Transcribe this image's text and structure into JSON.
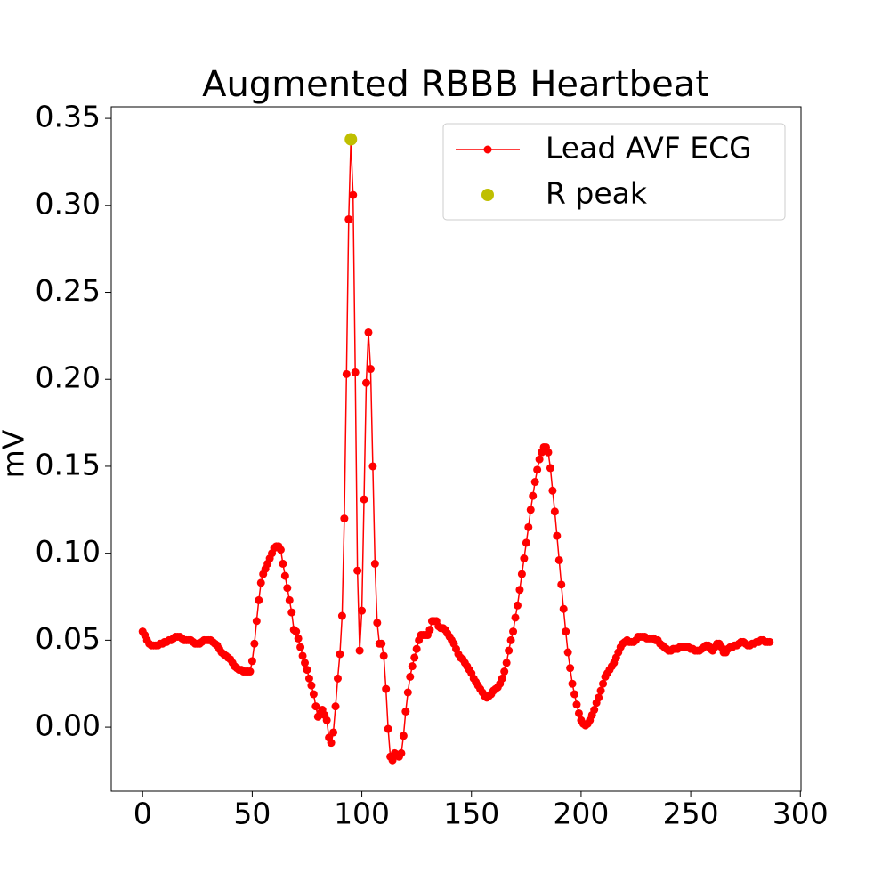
{
  "chart_data": {
    "type": "line",
    "title": "Augmented RBBB Heartbeat",
    "ylabel": "mV",
    "xlim": [
      -14.3,
      300.3
    ],
    "ylim": [
      -0.0368,
      0.3567
    ],
    "xticks": [
      0,
      50,
      100,
      150,
      200,
      250,
      300
    ],
    "yticks": [
      {
        "value": 0,
        "label": "0.00"
      },
      0.05,
      {
        "value": 0.1,
        "label": "0.10"
      },
      0.15,
      {
        "value": 0.2,
        "label": "0.20"
      },
      0.25,
      {
        "value": 0.3,
        "label": "0.30"
      },
      0.35
    ],
    "grid": false,
    "legend": "upper right",
    "series": [
      {
        "name": "Lead AVF ECG",
        "color": "#ff0000",
        "line": true,
        "marker": true,
        "x": [
          0,
          1,
          2,
          3,
          4,
          5,
          6,
          7,
          8,
          9,
          10,
          11,
          12,
          13,
          14,
          15,
          16,
          17,
          18,
          19,
          20,
          21,
          22,
          23,
          24,
          25,
          26,
          27,
          28,
          29,
          30,
          31,
          32,
          33,
          34,
          35,
          36,
          37,
          38,
          39,
          40,
          41,
          42,
          43,
          44,
          45,
          46,
          47,
          48,
          49,
          50,
          51,
          52,
          53,
          54,
          55,
          56,
          57,
          58,
          59,
          60,
          61,
          62,
          63,
          64,
          65,
          66,
          67,
          68,
          69,
          70,
          71,
          72,
          73,
          74,
          75,
          76,
          77,
          78,
          79,
          80,
          81,
          82,
          83,
          84,
          85,
          86,
          87,
          88,
          89,
          90,
          91,
          92,
          93,
          94,
          95,
          96,
          97,
          98,
          99,
          100,
          101,
          102,
          103,
          104,
          105,
          106,
          107,
          108,
          109,
          110,
          111,
          112,
          113,
          114,
          115,
          116,
          117,
          118,
          119,
          120,
          121,
          122,
          123,
          124,
          125,
          126,
          127,
          128,
          129,
          130,
          131,
          132,
          133,
          134,
          135,
          136,
          137,
          138,
          139,
          140,
          141,
          142,
          143,
          144,
          145,
          146,
          147,
          148,
          149,
          150,
          151,
          152,
          153,
          154,
          155,
          156,
          157,
          158,
          159,
          160,
          161,
          162,
          163,
          164,
          165,
          166,
          167,
          168,
          169,
          170,
          171,
          172,
          173,
          174,
          175,
          176,
          177,
          178,
          179,
          180,
          181,
          182,
          183,
          184,
          185,
          186,
          187,
          188,
          189,
          190,
          191,
          192,
          193,
          194,
          195,
          196,
          197,
          198,
          199,
          200,
          201,
          202,
          203,
          204,
          205,
          206,
          207,
          208,
          209,
          210,
          211,
          212,
          213,
          214,
          215,
          216,
          217,
          218,
          219,
          220,
          221,
          222,
          223,
          224,
          225,
          226,
          227,
          228,
          229,
          230,
          231,
          232,
          233,
          234,
          235,
          236,
          237,
          238,
          239,
          240,
          241,
          242,
          243,
          244,
          245,
          246,
          247,
          248,
          249,
          250,
          251,
          252,
          253,
          254,
          255,
          256,
          257,
          258,
          259,
          260,
          261,
          262,
          263,
          264,
          265,
          266,
          267,
          268,
          269,
          270,
          271,
          272,
          273,
          274,
          275,
          276,
          277,
          278,
          279,
          280,
          281,
          282,
          283,
          284,
          285,
          286
        ],
        "values": [
          0.055,
          0.053,
          0.05,
          0.048,
          0.047,
          0.047,
          0.047,
          0.047,
          0.048,
          0.048,
          0.049,
          0.049,
          0.05,
          0.05,
          0.051,
          0.052,
          0.052,
          0.052,
          0.051,
          0.05,
          0.05,
          0.05,
          0.05,
          0.049,
          0.048,
          0.048,
          0.048,
          0.049,
          0.05,
          0.05,
          0.05,
          0.05,
          0.049,
          0.048,
          0.047,
          0.045,
          0.043,
          0.042,
          0.041,
          0.04,
          0.039,
          0.037,
          0.035,
          0.034,
          0.033,
          0.033,
          0.032,
          0.032,
          0.032,
          0.032,
          0.038,
          0.048,
          0.061,
          0.073,
          0.083,
          0.088,
          0.091,
          0.094,
          0.097,
          0.1,
          0.103,
          0.104,
          0.104,
          0.102,
          0.094,
          0.087,
          0.08,
          0.073,
          0.066,
          0.056,
          0.055,
          0.051,
          0.046,
          0.041,
          0.037,
          0.033,
          0.028,
          0.024,
          0.019,
          0.012,
          0.006,
          0.008,
          0.01,
          0.007,
          0.004,
          -0.006,
          -0.009,
          -0.003,
          0.012,
          0.028,
          0.042,
          0.064,
          0.12,
          0.203,
          0.292,
          0.338,
          0.306,
          0.204,
          0.09,
          0.044,
          0.067,
          0.131,
          0.198,
          0.227,
          0.206,
          0.15,
          0.094,
          0.06,
          0.048,
          0.048,
          0.041,
          0.022,
          -0.001,
          -0.017,
          -0.019,
          -0.015,
          -0.016,
          -0.017,
          -0.015,
          -0.005,
          0.009,
          0.02,
          0.029,
          0.035,
          0.04,
          0.045,
          0.05,
          0.053,
          0.053,
          0.053,
          0.053,
          0.056,
          0.061,
          0.061,
          0.061,
          0.058,
          0.057,
          0.057,
          0.056,
          0.054,
          0.052,
          0.05,
          0.048,
          0.045,
          0.042,
          0.04,
          0.039,
          0.037,
          0.035,
          0.033,
          0.031,
          0.028,
          0.026,
          0.024,
          0.022,
          0.02,
          0.018,
          0.017,
          0.018,
          0.019,
          0.021,
          0.022,
          0.023,
          0.025,
          0.028,
          0.032,
          0.037,
          0.044,
          0.05,
          0.055,
          0.063,
          0.07,
          0.079,
          0.088,
          0.097,
          0.106,
          0.115,
          0.125,
          0.133,
          0.141,
          0.148,
          0.154,
          0.158,
          0.161,
          0.161,
          0.158,
          0.149,
          0.136,
          0.124,
          0.11,
          0.096,
          0.082,
          0.068,
          0.055,
          0.043,
          0.034,
          0.025,
          0.019,
          0.013,
          0.008,
          0.004,
          0.002,
          0.001,
          0.002,
          0.004,
          0.007,
          0.01,
          0.014,
          0.017,
          0.021,
          0.025,
          0.029,
          0.031,
          0.033,
          0.035,
          0.037,
          0.04,
          0.043,
          0.046,
          0.048,
          0.049,
          0.05,
          0.049,
          0.049,
          0.049,
          0.05,
          0.052,
          0.052,
          0.052,
          0.052,
          0.051,
          0.051,
          0.051,
          0.051,
          0.05,
          0.05,
          0.048,
          0.047,
          0.046,
          0.045,
          0.044,
          0.044,
          0.045,
          0.045,
          0.045,
          0.046,
          0.046,
          0.046,
          0.046,
          0.046,
          0.045,
          0.045,
          0.044,
          0.044,
          0.044,
          0.045,
          0.046,
          0.047,
          0.047,
          0.045,
          0.044,
          0.046,
          0.048,
          0.048,
          0.046,
          0.043,
          0.043,
          0.045,
          0.046,
          0.046,
          0.047,
          0.047,
          0.048,
          0.049,
          0.049,
          0.048,
          0.047,
          0.047,
          0.048,
          0.048,
          0.049,
          0.049,
          0.05,
          0.05,
          0.049,
          0.049,
          0.049
        ]
      },
      {
        "name": "R peak",
        "color": "#bfbf00",
        "line": false,
        "marker": true,
        "x": [
          95
        ],
        "values": [
          0.338
        ]
      }
    ]
  }
}
